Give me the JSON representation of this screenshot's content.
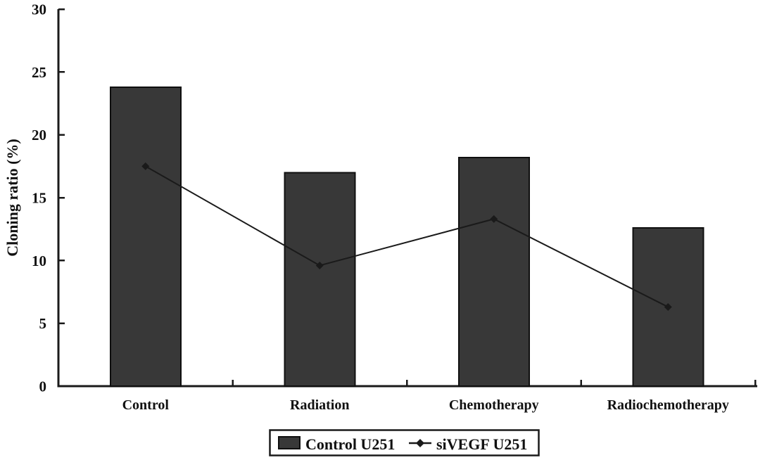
{
  "chart_data": {
    "type": "bar",
    "combo": "bars with overlaid line series",
    "title": "",
    "xlabel": "",
    "ylabel": "Cloning ratio (%)",
    "categories": [
      "Control",
      "Radiation",
      "Chemotherapy",
      "Radiochemotherapy"
    ],
    "series": [
      {
        "name": "Control U251",
        "type": "bar",
        "marker": "filled-rectangle-swatch",
        "color": "#383838",
        "values": [
          23.8,
          17.0,
          18.2,
          12.6
        ]
      },
      {
        "name": "siVEGF U251",
        "type": "line",
        "marker": "diamond",
        "color": "#1a1a1a",
        "values": [
          17.5,
          9.6,
          13.3,
          6.3
        ]
      }
    ],
    "ylim": [
      0,
      30
    ],
    "yticks": [
      0,
      5,
      10,
      15,
      20,
      25,
      30
    ],
    "grid": false,
    "legend_position": "bottom-center",
    "legend_labels": [
      "Control U251",
      "siVEGF U251"
    ]
  },
  "colors": {
    "background": "#ffffff",
    "bar_fill": "#383838",
    "bar_border": "#0f0f0f",
    "line": "#1a1a1a",
    "axis": "#1a1a1a",
    "text": "#111111",
    "legend_border": "#1a1a1a",
    "legend_fill": "#ffffff"
  }
}
